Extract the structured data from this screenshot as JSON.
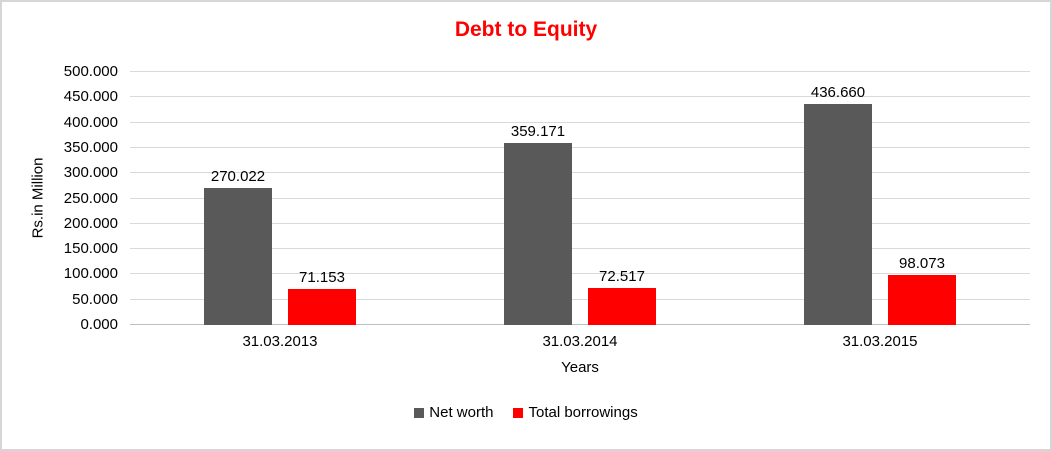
{
  "chart_data": {
    "type": "bar",
    "title": "Debt to Equity",
    "title_color": "#FF0000",
    "xlabel": "Years",
    "ylabel": "Rs.in Million",
    "categories": [
      "31.03.2013",
      "31.03.2014",
      "31.03.2015"
    ],
    "series": [
      {
        "name": "Net worth",
        "color": "#595959",
        "values": [
          270.022,
          359.171,
          436.66
        ]
      },
      {
        "name": "Total borrowings",
        "color": "#FF0000",
        "values": [
          71.153,
          72.517,
          98.073
        ]
      }
    ],
    "ylim": [
      0,
      500
    ],
    "ytick_step": 50,
    "ytick_decimals": 3,
    "value_decimals": 3,
    "grid": true,
    "legend_position": "bottom"
  },
  "colors": {
    "gridline": "#D9D9D9",
    "axis_line": "#BFBFBF",
    "border": "#D6D6D6",
    "text": "#000000"
  }
}
